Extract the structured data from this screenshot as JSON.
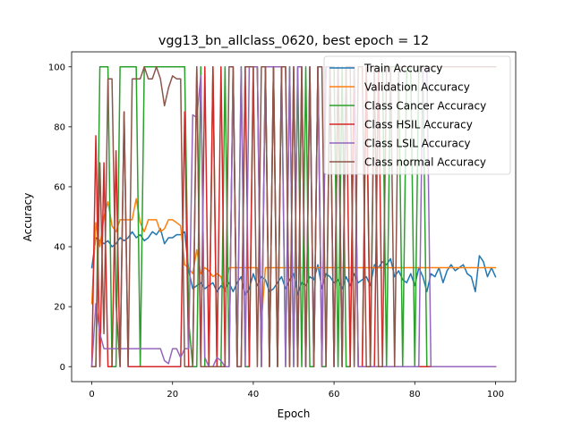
{
  "chart_data": {
    "type": "line",
    "title": "vgg13_bn_allclass_0620, best epoch = 12",
    "xlabel": "Epoch",
    "ylabel": "Accuracy",
    "xlim": [
      -5,
      105
    ],
    "ylim": [
      -5,
      105
    ],
    "xticks": [
      0,
      20,
      40,
      60,
      80,
      100
    ],
    "yticks": [
      0,
      20,
      40,
      60,
      80,
      100
    ],
    "grid": false,
    "legend_position": "upper right",
    "x": [
      0,
      1,
      2,
      3,
      4,
      5,
      6,
      7,
      8,
      9,
      10,
      11,
      12,
      13,
      14,
      15,
      16,
      17,
      18,
      19,
      20,
      21,
      22,
      23,
      24,
      25,
      26,
      27,
      28,
      29,
      30,
      31,
      32,
      33,
      34,
      35,
      36,
      37,
      38,
      39,
      40,
      41,
      42,
      43,
      44,
      45,
      46,
      47,
      48,
      49,
      50,
      51,
      52,
      53,
      54,
      55,
      56,
      57,
      58,
      59,
      60,
      61,
      62,
      63,
      64,
      65,
      66,
      67,
      68,
      69,
      70,
      71,
      72,
      73,
      74,
      75,
      76,
      77,
      78,
      79,
      80,
      81,
      82,
      83,
      84,
      85,
      86,
      87,
      88,
      89,
      90,
      91,
      92,
      93,
      94,
      95,
      96,
      97,
      98,
      99,
      100
    ],
    "series": [
      {
        "name": "Train Accuracy",
        "color": "#1f77b4",
        "values": [
          33,
          43,
          42,
          41,
          42,
          40,
          41,
          43,
          42,
          43,
          45,
          43,
          44,
          42,
          43,
          45,
          44,
          46,
          41,
          43,
          43,
          44,
          44,
          45,
          32,
          26,
          27,
          28,
          26,
          27,
          28,
          25,
          27,
          26,
          28,
          25,
          28,
          30,
          24,
          26,
          31,
          27,
          30,
          29,
          25,
          26,
          28,
          30,
          26,
          29,
          31,
          24,
          28,
          27,
          30,
          29,
          34,
          26,
          31,
          30,
          28,
          29,
          26,
          30,
          27,
          31,
          28,
          29,
          30,
          27,
          34,
          33,
          35,
          34,
          36,
          30,
          32,
          29,
          28,
          31,
          27,
          33,
          30,
          25,
          31,
          30,
          33,
          28,
          32,
          34,
          32,
          33,
          34,
          31,
          30,
          25,
          37,
          35,
          30,
          33,
          30
        ]
      },
      {
        "name": "Validation Accuracy",
        "color": "#ff7f0e",
        "values": [
          21,
          48,
          40,
          50,
          55,
          47,
          45,
          49,
          49,
          49,
          49,
          56,
          48,
          45,
          49,
          49,
          49,
          45,
          46,
          49,
          49,
          48,
          47,
          34,
          33,
          31,
          39,
          31,
          33,
          32,
          30,
          31,
          30,
          25,
          33,
          33,
          33,
          33,
          33,
          33,
          33,
          33,
          15,
          33,
          33,
          33,
          33,
          33,
          33,
          33,
          33,
          33,
          33,
          33,
          33,
          33,
          33,
          33,
          33,
          33,
          33,
          33,
          33,
          33,
          33,
          33,
          33,
          33,
          33,
          33,
          33,
          33,
          33,
          33,
          33,
          33,
          33,
          33,
          33,
          33,
          33,
          33,
          33,
          33,
          33,
          33,
          33,
          33,
          33,
          33,
          33,
          33,
          33,
          33,
          33,
          33,
          33,
          33,
          33,
          33,
          33
        ]
      },
      {
        "name": "Class Cancer Accuracy",
        "color": "#2ca02c",
        "values": [
          0,
          0,
          100,
          100,
          100,
          0,
          0,
          100,
          100,
          100,
          100,
          100,
          0,
          100,
          100,
          100,
          100,
          100,
          100,
          100,
          100,
          100,
          100,
          100,
          15,
          0,
          0,
          100,
          0,
          0,
          100,
          0,
          0,
          100,
          0,
          100,
          0,
          100,
          0,
          0,
          100,
          100,
          0,
          100,
          0,
          100,
          0,
          100,
          0,
          100,
          0,
          100,
          0,
          100,
          0,
          0,
          100,
          0,
          0,
          100,
          100,
          0,
          100,
          0,
          0,
          100,
          0,
          0,
          100,
          0,
          100,
          100,
          100,
          0,
          100,
          100,
          100,
          0,
          100,
          100,
          0,
          100,
          100,
          0,
          0,
          0,
          0,
          0,
          0,
          0,
          0,
          0,
          0,
          0,
          0,
          0,
          0,
          0,
          0,
          0,
          0
        ]
      },
      {
        "name": "Class HSIL Accuracy",
        "color": "#d62728",
        "values": [
          0,
          77,
          0,
          68,
          0,
          0,
          72,
          0,
          85,
          0,
          0,
          0,
          0,
          0,
          0,
          0,
          0,
          0,
          0,
          0,
          0,
          0,
          0,
          85,
          0,
          0,
          100,
          0,
          100,
          0,
          100,
          0,
          100,
          0,
          0,
          100,
          0,
          0,
          100,
          0,
          100,
          100,
          0,
          100,
          0,
          100,
          0,
          100,
          100,
          0,
          100,
          0,
          100,
          0,
          100,
          0,
          100,
          0,
          100,
          100,
          0,
          100,
          0,
          100,
          0,
          100,
          0,
          0,
          100,
          0,
          0,
          100,
          0,
          0,
          0,
          0,
          0,
          0,
          0,
          0,
          0,
          0,
          0,
          0,
          0,
          0,
          0,
          0,
          0,
          0,
          0,
          0,
          0,
          0,
          0,
          0,
          0,
          0,
          0,
          0,
          0
        ]
      },
      {
        "name": "Class LSIL Accuracy",
        "color": "#9467bd",
        "values": [
          0,
          21,
          11,
          6,
          6,
          6,
          6,
          6,
          6,
          6,
          6,
          6,
          6,
          6,
          6,
          6,
          6,
          6,
          2,
          1,
          6,
          6,
          3,
          6,
          6,
          84,
          83,
          97,
          3,
          0,
          0,
          3,
          2,
          0,
          0,
          100,
          0,
          100,
          0,
          100,
          100,
          100,
          0,
          100,
          100,
          100,
          100,
          100,
          0,
          100,
          0,
          100,
          100,
          0,
          100,
          0,
          100,
          0,
          100,
          100,
          0,
          100,
          0,
          100,
          100,
          100,
          0,
          0,
          0,
          0,
          0,
          0,
          0,
          0,
          0,
          0,
          0,
          0,
          0,
          0,
          0,
          0,
          100,
          100,
          0,
          0,
          0,
          0,
          0,
          0,
          0,
          0,
          0,
          0,
          0,
          0,
          0,
          0,
          0,
          0,
          0
        ]
      },
      {
        "name": "Class normal Accuracy",
        "color": "#8c564b",
        "values": [
          0,
          0,
          68,
          11,
          96,
          96,
          21,
          0,
          85,
          0,
          96,
          96,
          96,
          100,
          96,
          96,
          100,
          96,
          87,
          93,
          97,
          96,
          96,
          0,
          0,
          0,
          100,
          0,
          0,
          0,
          0,
          0,
          0,
          0,
          100,
          100,
          0,
          0,
          100,
          100,
          100,
          0,
          100,
          100,
          0,
          100,
          0,
          100,
          100,
          0,
          100,
          0,
          100,
          0,
          100,
          0,
          100,
          100,
          0,
          100,
          0,
          100,
          0,
          100,
          100,
          0,
          100,
          100,
          0,
          0,
          100,
          0,
          0,
          100,
          100,
          0,
          100,
          100,
          100,
          100,
          100,
          100,
          100,
          100,
          100,
          100,
          100,
          100,
          100,
          100,
          100,
          100,
          100,
          100,
          100,
          100,
          100,
          100,
          100,
          100,
          100
        ]
      }
    ]
  }
}
